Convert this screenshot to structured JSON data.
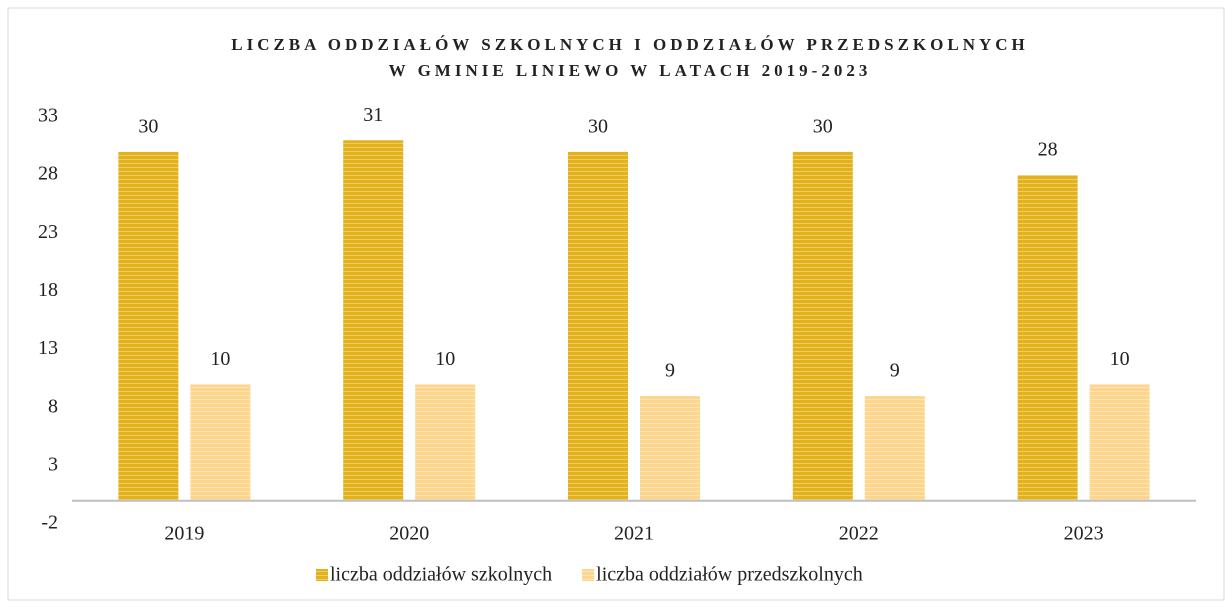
{
  "chart_data": {
    "type": "bar",
    "title": [
      "LICZBA ODDZIAŁÓW SZKOLNYCH I ODDZIAŁÓW PRZEDSZKOLNYCH",
      "W GMINIE LINIEWO W LATACH 2019-2023"
    ],
    "categories": [
      "2019",
      "2020",
      "2021",
      "2022",
      "2023"
    ],
    "series": [
      {
        "name": "liczba oddziałów szkolnych",
        "color": "#e3b21a",
        "values": [
          30,
          31,
          30,
          30,
          28
        ]
      },
      {
        "name": "liczba oddziałów przedszkolnych",
        "color": "#fbd68c",
        "values": [
          10,
          10,
          9,
          9,
          10
        ]
      }
    ],
    "ylim": [
      -2,
      33
    ],
    "yticks": [
      -2,
      3,
      8,
      13,
      18,
      23,
      28,
      33
    ],
    "grid": false,
    "legend": "bottom"
  }
}
